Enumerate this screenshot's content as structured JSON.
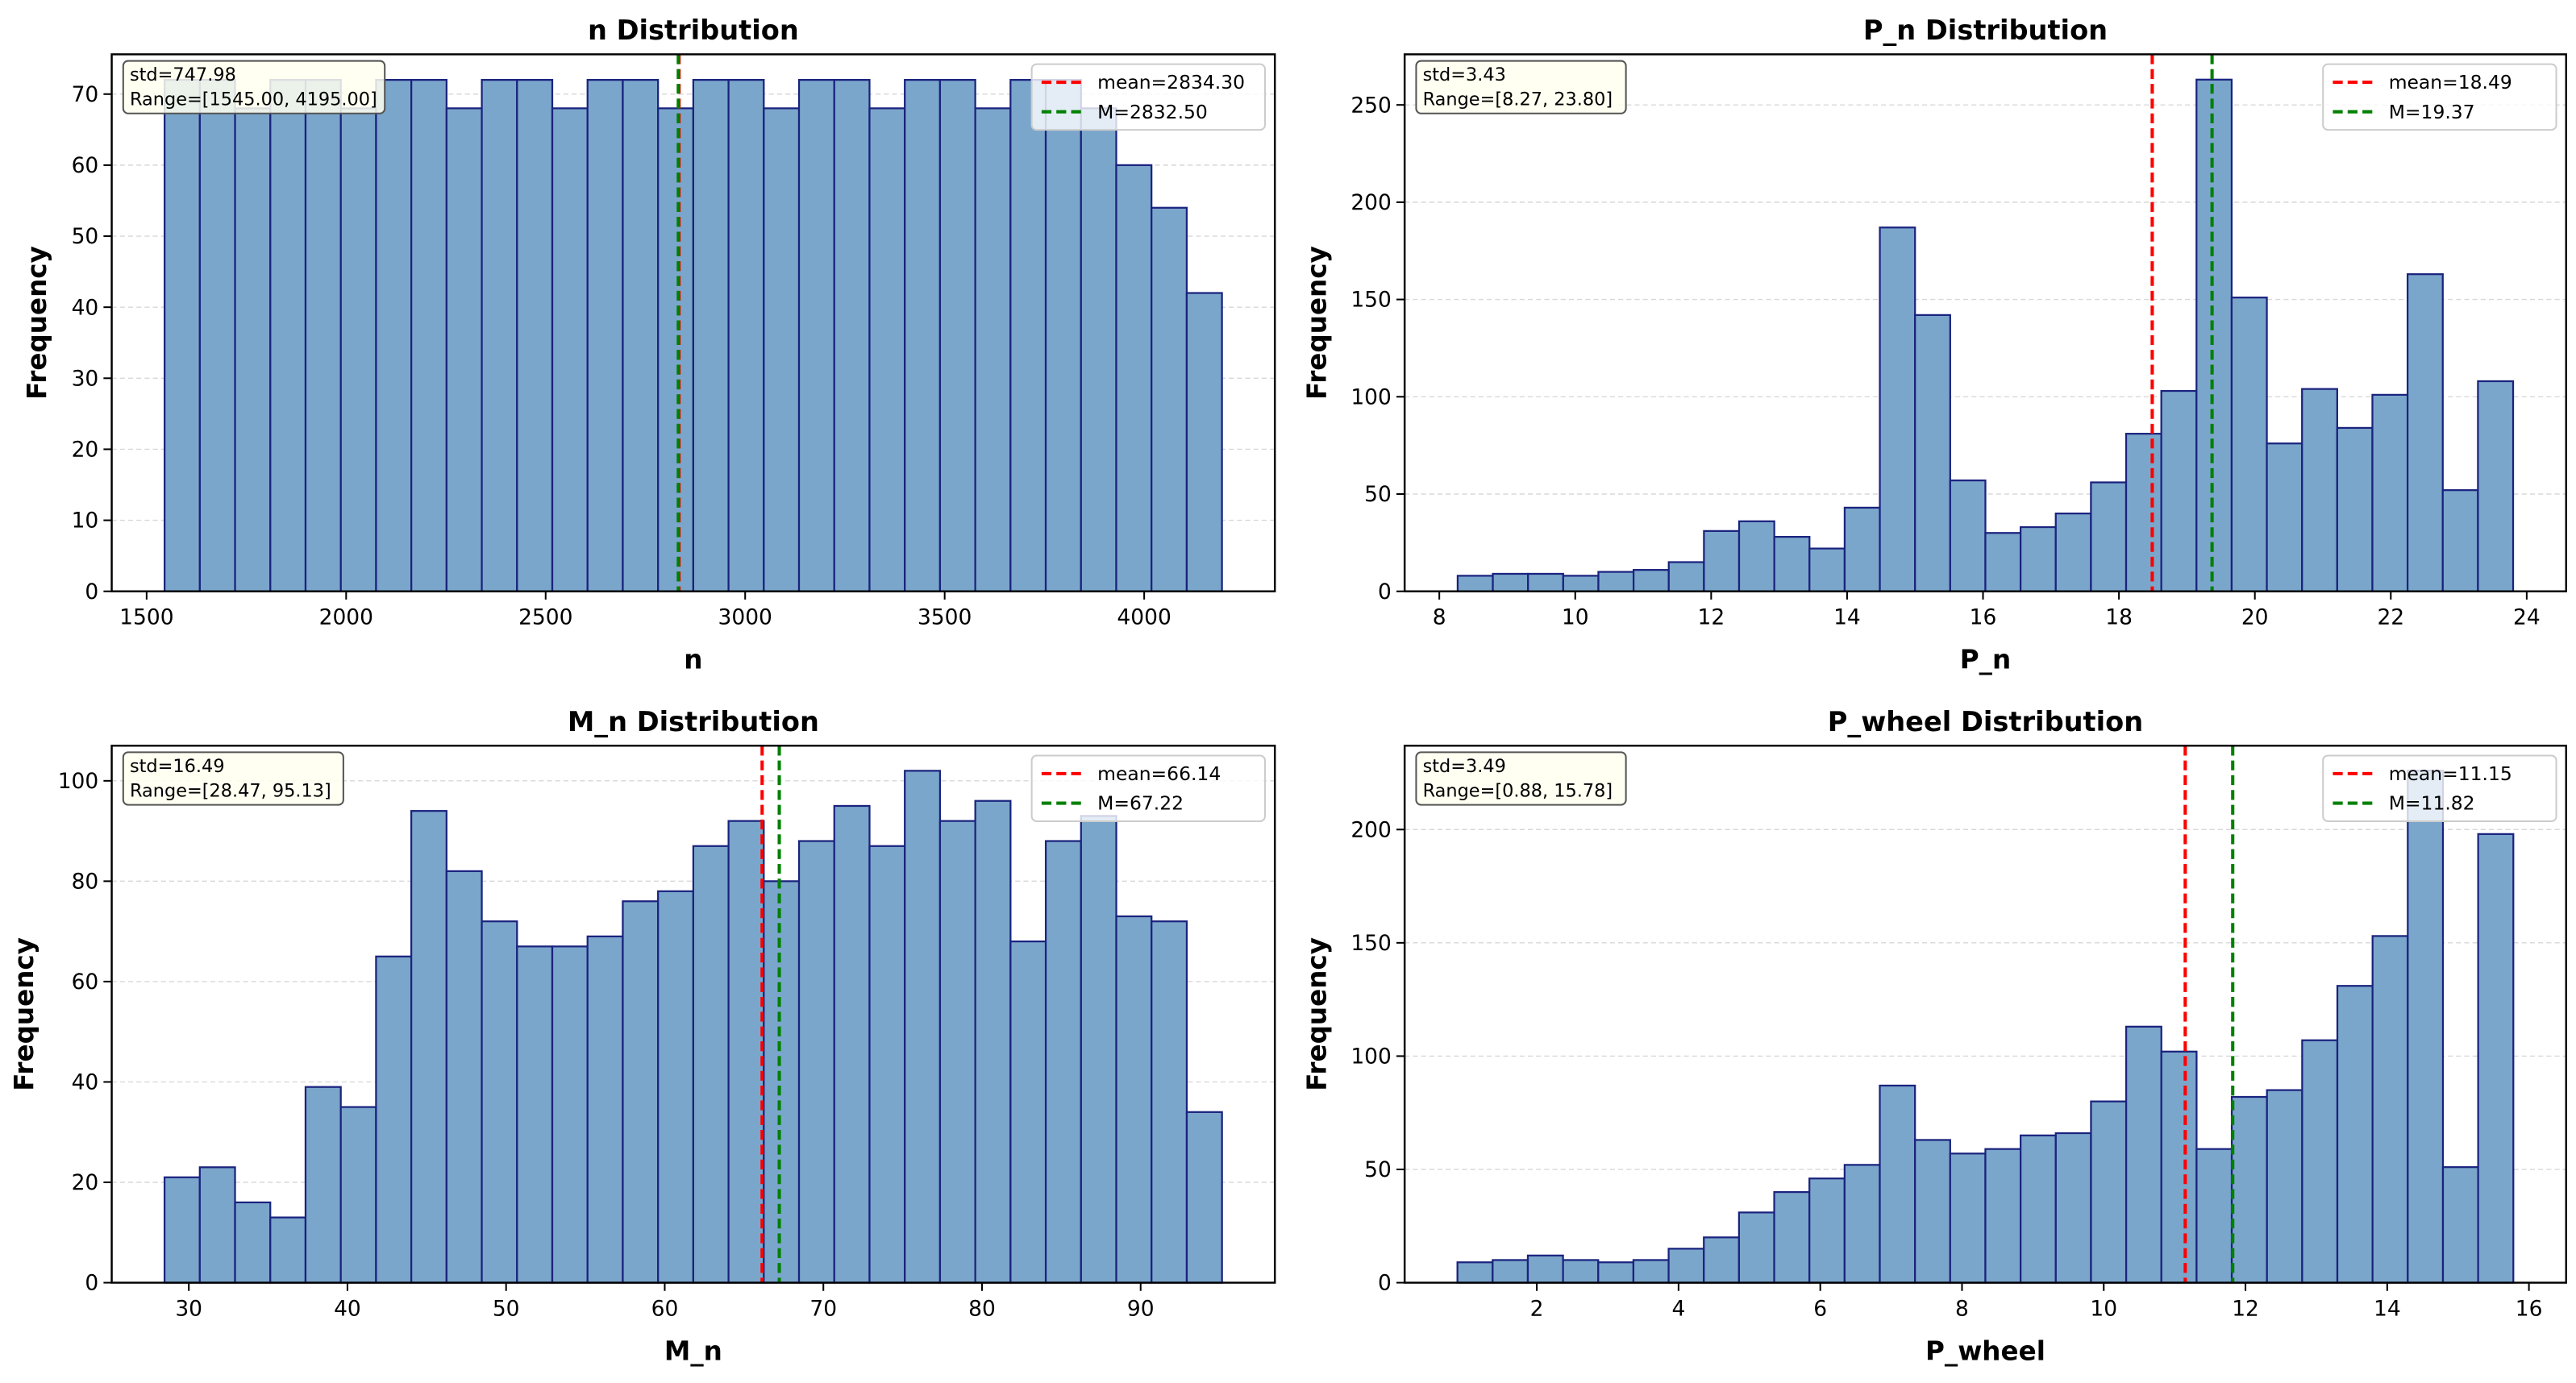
{
  "chart_data": [
    {
      "type": "bar",
      "title": "n Distribution",
      "xlabel": "n",
      "ylabel": "Frequency",
      "bin_range": [
        1545.0,
        4195.0
      ],
      "bins": 30,
      "values": [
        72,
        72,
        68,
        72,
        72,
        68,
        72,
        72,
        68,
        72,
        72,
        68,
        72,
        72,
        68,
        72,
        72,
        68,
        72,
        72,
        68,
        72,
        72,
        68,
        72,
        72,
        68,
        60,
        54,
        42
      ],
      "xlim": [
        1412.5,
        4327.5
      ],
      "ylim": [
        0,
        75.6
      ],
      "xticks": [
        1500,
        2000,
        2500,
        3000,
        3500,
        4000
      ],
      "yticks": [
        0,
        10,
        20,
        30,
        40,
        50,
        60,
        70
      ],
      "mean": 2834.3,
      "median": 2832.5,
      "legend": [
        "mean=2834.30",
        "M=2832.50"
      ],
      "annotation": [
        "std=747.98",
        "Range=[1545.00, 4195.00]"
      ],
      "grid": "y-dashed",
      "legend_position": "top-right"
    },
    {
      "type": "bar",
      "title": "P_n Distribution",
      "xlabel": "P_n",
      "ylabel": "Frequency",
      "bin_range": [
        8.27,
        23.8
      ],
      "bins": 30,
      "values": [
        8,
        9,
        9,
        8,
        10,
        11,
        15,
        31,
        36,
        28,
        22,
        43,
        187,
        142,
        57,
        30,
        33,
        40,
        56,
        81,
        103,
        263,
        151,
        76,
        104,
        84,
        101,
        163,
        52,
        108
      ],
      "xlim": [
        7.49,
        24.58
      ],
      "ylim": [
        0,
        276
      ],
      "xticks": [
        8,
        10,
        12,
        14,
        16,
        18,
        20,
        22,
        24
      ],
      "yticks": [
        0,
        50,
        100,
        150,
        200,
        250
      ],
      "mean": 18.49,
      "median": 19.37,
      "legend": [
        "mean=18.49",
        "M=19.37"
      ],
      "annotation": [
        "std=3.43",
        "Range=[8.27, 23.80]"
      ],
      "grid": "y-dashed",
      "legend_position": "top-right"
    },
    {
      "type": "bar",
      "title": "M_n Distribution",
      "xlabel": "M_n",
      "ylabel": "Frequency",
      "bin_range": [
        28.47,
        95.13
      ],
      "bins": 30,
      "values": [
        21,
        23,
        16,
        13,
        39,
        35,
        65,
        94,
        82,
        72,
        67,
        67,
        69,
        76,
        78,
        87,
        92,
        80,
        88,
        95,
        87,
        102,
        92,
        96,
        68,
        88,
        93,
        73,
        72,
        34
      ],
      "xlim": [
        25.14,
        98.46
      ],
      "ylim": [
        0,
        107
      ],
      "xticks": [
        30,
        40,
        50,
        60,
        70,
        80,
        90
      ],
      "yticks": [
        0,
        20,
        40,
        60,
        80,
        100
      ],
      "mean": 66.14,
      "median": 67.22,
      "legend": [
        "mean=66.14",
        "M=67.22"
      ],
      "annotation": [
        "std=16.49",
        "Range=[28.47, 95.13]"
      ],
      "grid": "y-dashed",
      "legend_position": "top-right"
    },
    {
      "type": "bar",
      "title": "P_wheel Distribution",
      "xlabel": "P_wheel",
      "ylabel": "Frequency",
      "bin_range": [
        0.88,
        15.78
      ],
      "bins": 30,
      "values": [
        9,
        10,
        12,
        10,
        9,
        10,
        15,
        20,
        31,
        40,
        46,
        52,
        87,
        63,
        57,
        59,
        65,
        66,
        80,
        113,
        102,
        59,
        82,
        85,
        107,
        131,
        153,
        226,
        51,
        198
      ],
      "xlim": [
        0.135,
        16.525
      ],
      "ylim": [
        0,
        237
      ],
      "xticks": [
        2,
        4,
        6,
        8,
        10,
        12,
        14,
        16
      ],
      "yticks": [
        0,
        50,
        100,
        150,
        200
      ],
      "mean": 11.15,
      "median": 11.82,
      "legend": [
        "mean=11.15",
        "M=11.82"
      ],
      "annotation": [
        "std=3.49",
        "Range=[0.88, 15.78]"
      ],
      "grid": "y-dashed",
      "legend_position": "top-right"
    }
  ],
  "colors": {
    "bar_fill": "#7ba6cb",
    "bar_edge": "#1a237e",
    "mean_line": "#ff0000",
    "median_line": "#008000",
    "annotation_bg": "#fffff0"
  }
}
